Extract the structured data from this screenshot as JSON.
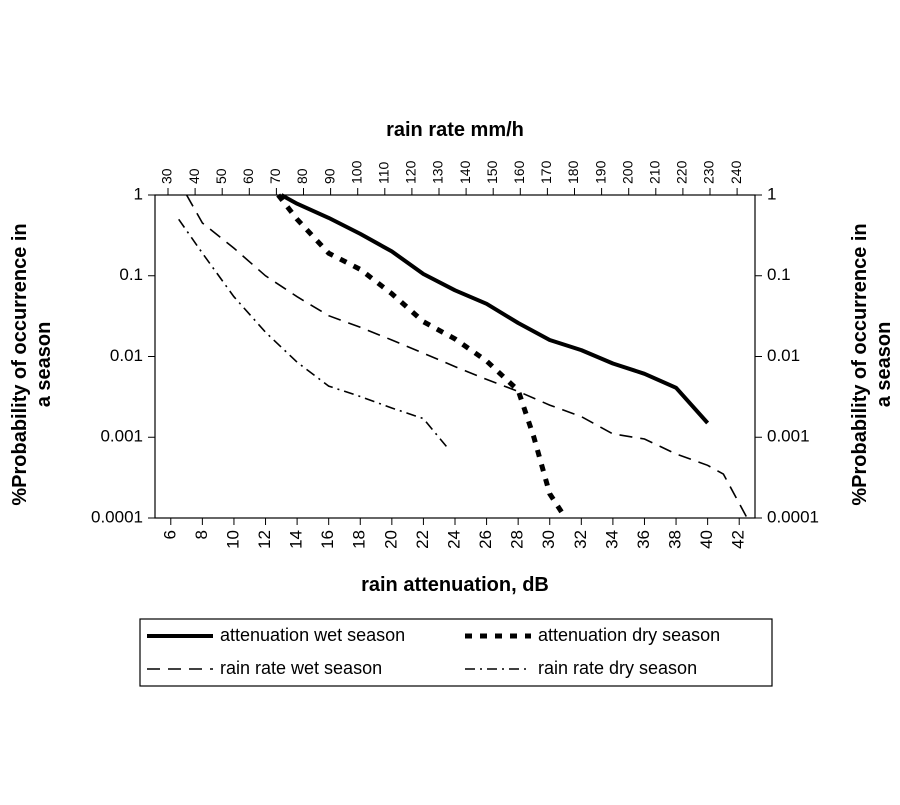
{
  "chart_data": {
    "type": "line",
    "title": "",
    "xlabel": "rain attenuation, dB",
    "x2label": "rain rate mm/h",
    "ylabel": "%Probability of occurrence in a season",
    "ylabel_right": "%Probability of occurrence in a season",
    "ylabel_lines": [
      "%Probability of occurrence in",
      "a season"
    ],
    "yscale": "log",
    "xlim": [
      5,
      43
    ],
    "ylim": [
      0.0001,
      1
    ],
    "x_ticks": [
      6,
      8,
      10,
      12,
      14,
      16,
      18,
      20,
      22,
      24,
      26,
      28,
      30,
      32,
      34,
      36,
      38,
      40,
      42
    ],
    "x2_ticks": [
      30,
      40,
      50,
      60,
      70,
      80,
      90,
      100,
      110,
      120,
      130,
      140,
      150,
      160,
      170,
      180,
      190,
      200,
      210,
      220,
      230,
      240
    ],
    "y_ticks": [
      1,
      0.1,
      0.01,
      0.001,
      0.0001
    ],
    "y_tick_labels": [
      "1",
      "0.1",
      "0.01",
      "0.001",
      "0.0001"
    ],
    "grid": false,
    "legend": "bottom",
    "series": [
      {
        "name": "attenuation wet season",
        "style": "solid-thick",
        "x": [
          13,
          14,
          16,
          18,
          20,
          22,
          24,
          26,
          28,
          30,
          32,
          34,
          36,
          38,
          40
        ],
        "y": [
          1.0,
          0.78,
          0.52,
          0.33,
          0.2,
          0.105,
          0.066,
          0.045,
          0.026,
          0.016,
          0.012,
          0.0082,
          0.0061,
          0.0041,
          0.0015
        ]
      },
      {
        "name": "attenuation dry season",
        "style": "dotted-thick",
        "x": [
          12.8,
          14,
          16,
          18,
          20,
          22,
          24,
          26,
          28,
          29,
          30,
          31
        ],
        "y": [
          1.0,
          0.5,
          0.19,
          0.12,
          0.06,
          0.027,
          0.0165,
          0.0088,
          0.0038,
          0.001,
          0.0002,
          0.0001
        ]
      },
      {
        "name": "rain rate wet season",
        "style": "dashed",
        "x": [
          7,
          8,
          10,
          12,
          14,
          16,
          18,
          20,
          22,
          24,
          26,
          28,
          30,
          32,
          34,
          36,
          38,
          40,
          41,
          42.5
        ],
        "y": [
          1.0,
          0.45,
          0.22,
          0.1,
          0.055,
          0.032,
          0.023,
          0.016,
          0.011,
          0.0075,
          0.0052,
          0.0037,
          0.0025,
          0.0018,
          0.0011,
          0.00095,
          0.00062,
          0.00045,
          0.00035,
          0.0001
        ]
      },
      {
        "name": "rain rate dry season",
        "style": "dash-dot",
        "x": [
          6.5,
          8,
          10,
          12,
          14,
          16,
          18,
          20,
          22,
          23.5
        ],
        "y": [
          0.5,
          0.19,
          0.055,
          0.02,
          0.0085,
          0.0043,
          0.0032,
          0.0023,
          0.0017,
          0.00075
        ]
      }
    ]
  },
  "legend": {
    "items": [
      {
        "name": "attenuation wet season",
        "style": "solid-thick"
      },
      {
        "name": "attenuation dry season",
        "style": "dotted-thick"
      },
      {
        "name": "rain rate wet season",
        "style": "dashed"
      },
      {
        "name": "rain rate dry season",
        "style": "dash-dot"
      }
    ]
  }
}
